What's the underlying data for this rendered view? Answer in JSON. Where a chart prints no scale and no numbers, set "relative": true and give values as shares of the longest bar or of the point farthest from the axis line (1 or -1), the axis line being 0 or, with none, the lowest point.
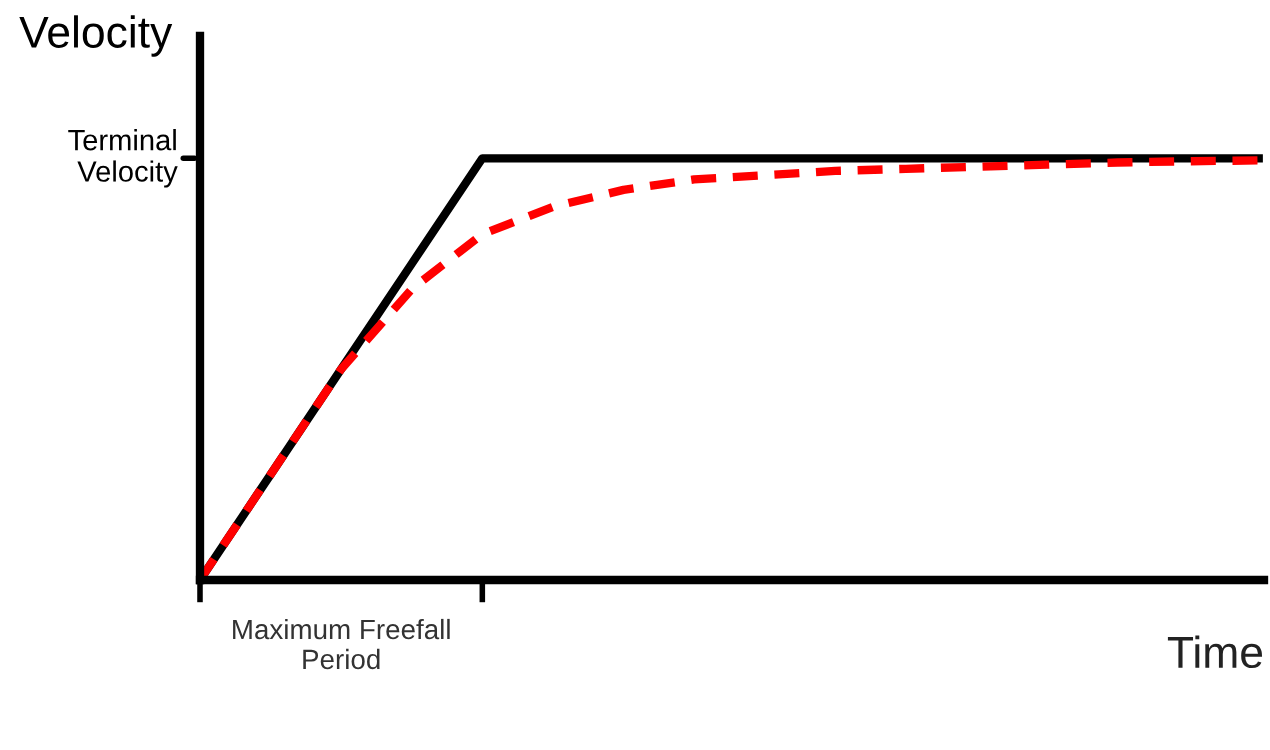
{
  "chart_data": {
    "type": "line",
    "relative": true,
    "xlabel": "Time",
    "ylabel": "Velocity",
    "categories": [
      null,
      null,
      null,
      null,
      null,
      null,
      null,
      null,
      null,
      null,
      null,
      null,
      null,
      null,
      null,
      null
    ],
    "series": [
      {
        "color": "#000000",
        "line_style": "solid",
        "values": [
          0,
          0.25,
          0.5,
          0.75,
          1,
          1,
          1,
          1,
          1,
          1,
          1,
          1,
          1,
          1,
          1,
          1
        ]
      },
      {
        "color": "#ff0000",
        "line_style": "dashed",
        "values": [
          0,
          0.25,
          0.5,
          0.69,
          0.82,
          0.885,
          0.925,
          0.95,
          0.96,
          0.97,
          0.975,
          0.98,
          0.985,
          0.99,
          0.993,
          0.995
        ]
      }
    ],
    "annotations": [
      "Terminal\nVelocity",
      "Maximum Freefall\nPeriod"
    ],
    "grid": false,
    "legend": false
  }
}
